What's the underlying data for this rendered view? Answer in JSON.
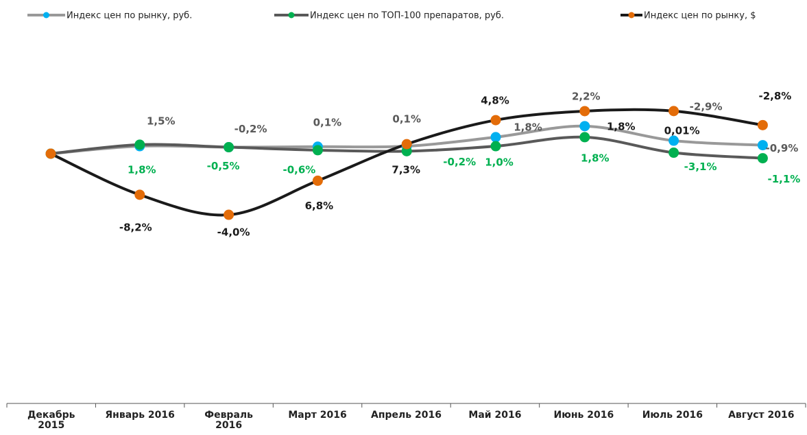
{
  "chart_data": {
    "type": "line",
    "categories": [
      "Декабрь 2015",
      "Январь 2016",
      "Февраль 2016",
      "Март 2016",
      "Апрель 2016",
      "Май 2016",
      "Июнь 2016",
      "Июль 2016",
      "Август 2016"
    ],
    "series": [
      {
        "name": "Индекс цен по рынку, руб.",
        "color": "#999999",
        "marker_color": "#00b0f0",
        "label_color": "#595959",
        "values": [
          0,
          1.5,
          -0.2,
          0.1,
          0.1,
          1.8,
          2.2,
          -2.9,
          -0.9
        ],
        "value_labels": [
          null,
          "1,5%",
          "-0,2%",
          "0,1%",
          "0,1%",
          "1,8%",
          "2,2%",
          "-2,9%",
          "-0,9%"
        ]
      },
      {
        "name": "Индекс цен по ТОП-100 препаратов, руб.",
        "color": "#595959",
        "marker_color": "#00b050",
        "label_color": "#00b050",
        "values": [
          0,
          1.8,
          -0.5,
          -0.6,
          -0.2,
          1.0,
          1.8,
          -3.1,
          -1.1
        ],
        "value_labels": [
          null,
          "1,8%",
          "-0,5%",
          "-0,6%",
          "-0,2%",
          "1,0%",
          "1,8%",
          "-3,1%",
          "-1,1%"
        ]
      },
      {
        "name": "Индекс цен по рынку, $",
        "color": "#1a1a1a",
        "marker_color": "#e36c09",
        "label_color": "#1a1a1a",
        "values": [
          0,
          -8.2,
          -4.0,
          6.8,
          7.3,
          4.8,
          1.8,
          0.01,
          -2.8
        ],
        "value_labels": [
          null,
          "-8,2%",
          "-4,0%",
          "6,8%",
          "7,3%",
          "4,8%",
          "1,8%",
          "0,01%",
          "-2,8%"
        ]
      }
    ],
    "legend": "top"
  }
}
